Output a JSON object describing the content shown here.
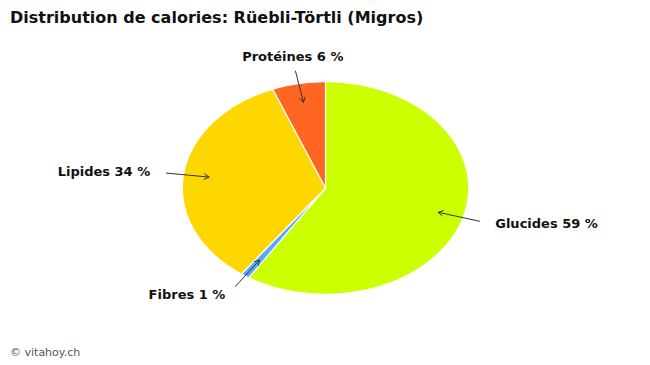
{
  "chart_data": {
    "type": "pie",
    "title": "Distribution de calories: Rüebli-Törtli (Migros)",
    "categories": [
      "Glucides 59 %",
      "Fibres 1 %",
      "Lipides 34 %",
      "Protéines 6 %"
    ],
    "values": [
      59,
      1,
      34,
      6
    ],
    "colors": [
      "#CCFF00",
      "#55AAFF",
      "#FFD700",
      "#FF6622"
    ],
    "caption": "© vitahoy.ch"
  }
}
